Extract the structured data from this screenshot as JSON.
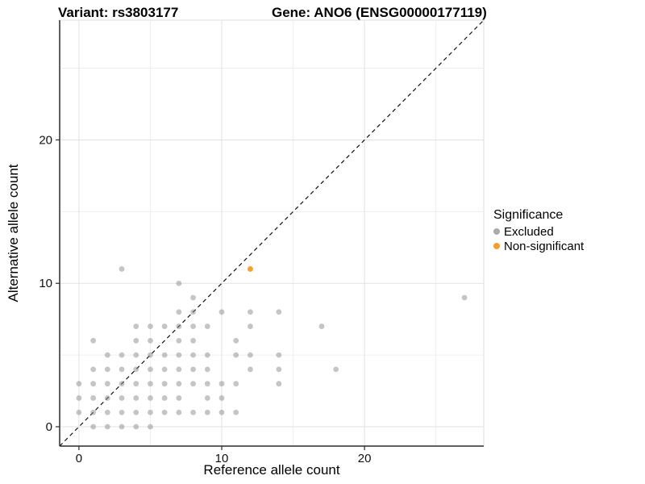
{
  "title": {
    "variant": "Variant: rs3803177",
    "gene": "Gene: ANO6 (ENSG00000177119)"
  },
  "axes": {
    "x": {
      "label": "Reference allele count",
      "major_ticks": [
        0,
        10,
        20
      ],
      "minor_gridlines": [
        5,
        15,
        25
      ],
      "range": [
        -1.35,
        28.35
      ]
    },
    "y": {
      "label": "Alternative allele count",
      "major_ticks": [
        0,
        10,
        20
      ],
      "minor_gridlines": [
        5,
        15,
        25
      ],
      "range": [
        -1.35,
        28.35
      ]
    }
  },
  "legend": {
    "title": "Significance",
    "items": [
      {
        "label": "Excluded",
        "color": "#ababab"
      },
      {
        "label": "Non-significant",
        "color": "#FA9E28"
      }
    ]
  },
  "colors": {
    "excluded_point": "#8c8c8c",
    "nonsignificant_point": "#FA9E28",
    "major_gridline": "#e2e2e2",
    "minor_gridline": "#efefef",
    "axis_line": "#2b2b2b",
    "panel_border": "#dcdcdc",
    "diagonal_line": "#111111"
  },
  "chart_data": {
    "type": "scatter",
    "title": "Variant: rs3803177 | Gene: ANO6 (ENSG00000177119)",
    "xlabel": "Reference allele count",
    "ylabel": "Alternative allele count",
    "xlim": [
      -1.35,
      28.35
    ],
    "ylim": [
      -1.35,
      28.35
    ],
    "grid": true,
    "legend_position": "right",
    "diagonal": {
      "type": "abline",
      "slope": 1,
      "intercept": 0,
      "style": "dashed"
    },
    "series": [
      {
        "name": "Excluded",
        "color": "#8c8c8c",
        "opacity": 0.5,
        "points": [
          [
            1,
            0
          ],
          [
            2,
            0
          ],
          [
            3,
            0
          ],
          [
            4,
            0
          ],
          [
            5,
            0
          ],
          [
            0,
            1
          ],
          [
            1,
            1
          ],
          [
            2,
            1
          ],
          [
            3,
            1
          ],
          [
            4,
            1
          ],
          [
            5,
            1
          ],
          [
            6,
            1
          ],
          [
            7,
            1
          ],
          [
            8,
            1
          ],
          [
            9,
            1
          ],
          [
            10,
            1
          ],
          [
            11,
            1
          ],
          [
            0,
            2
          ],
          [
            1,
            2
          ],
          [
            2,
            2
          ],
          [
            3,
            2
          ],
          [
            4,
            2
          ],
          [
            5,
            2
          ],
          [
            6,
            2
          ],
          [
            7,
            2
          ],
          [
            9,
            2
          ],
          [
            10,
            2
          ],
          [
            0,
            3
          ],
          [
            1,
            3
          ],
          [
            2,
            3
          ],
          [
            3,
            3
          ],
          [
            4,
            3
          ],
          [
            5,
            3
          ],
          [
            6,
            3
          ],
          [
            7,
            3
          ],
          [
            8,
            3
          ],
          [
            9,
            3
          ],
          [
            10,
            3
          ],
          [
            11,
            3
          ],
          [
            14,
            3
          ],
          [
            1,
            4
          ],
          [
            2,
            4
          ],
          [
            3,
            4
          ],
          [
            4,
            4
          ],
          [
            5,
            4
          ],
          [
            6,
            4
          ],
          [
            7,
            4
          ],
          [
            8,
            4
          ],
          [
            9,
            4
          ],
          [
            12,
            4
          ],
          [
            14,
            4
          ],
          [
            18,
            4
          ],
          [
            2,
            5
          ],
          [
            3,
            5
          ],
          [
            4,
            5
          ],
          [
            5,
            5
          ],
          [
            6,
            5
          ],
          [
            7,
            5
          ],
          [
            8,
            5
          ],
          [
            9,
            5
          ],
          [
            11,
            5
          ],
          [
            12,
            5
          ],
          [
            14,
            5
          ],
          [
            1,
            6
          ],
          [
            4,
            6
          ],
          [
            5,
            6
          ],
          [
            7,
            6
          ],
          [
            8,
            6
          ],
          [
            11,
            6
          ],
          [
            4,
            7
          ],
          [
            5,
            7
          ],
          [
            6,
            7
          ],
          [
            7,
            7
          ],
          [
            8,
            7
          ],
          [
            9,
            7
          ],
          [
            12,
            7
          ],
          [
            17,
            7
          ],
          [
            7,
            8
          ],
          [
            8,
            8
          ],
          [
            10,
            8
          ],
          [
            12,
            8
          ],
          [
            14,
            8
          ],
          [
            8,
            9
          ],
          [
            27,
            9
          ],
          [
            7,
            10
          ],
          [
            3,
            11
          ]
        ]
      },
      {
        "name": "Non-significant",
        "color": "#FA9E28",
        "opacity": 1,
        "points": [
          [
            12,
            11
          ]
        ]
      }
    ]
  }
}
